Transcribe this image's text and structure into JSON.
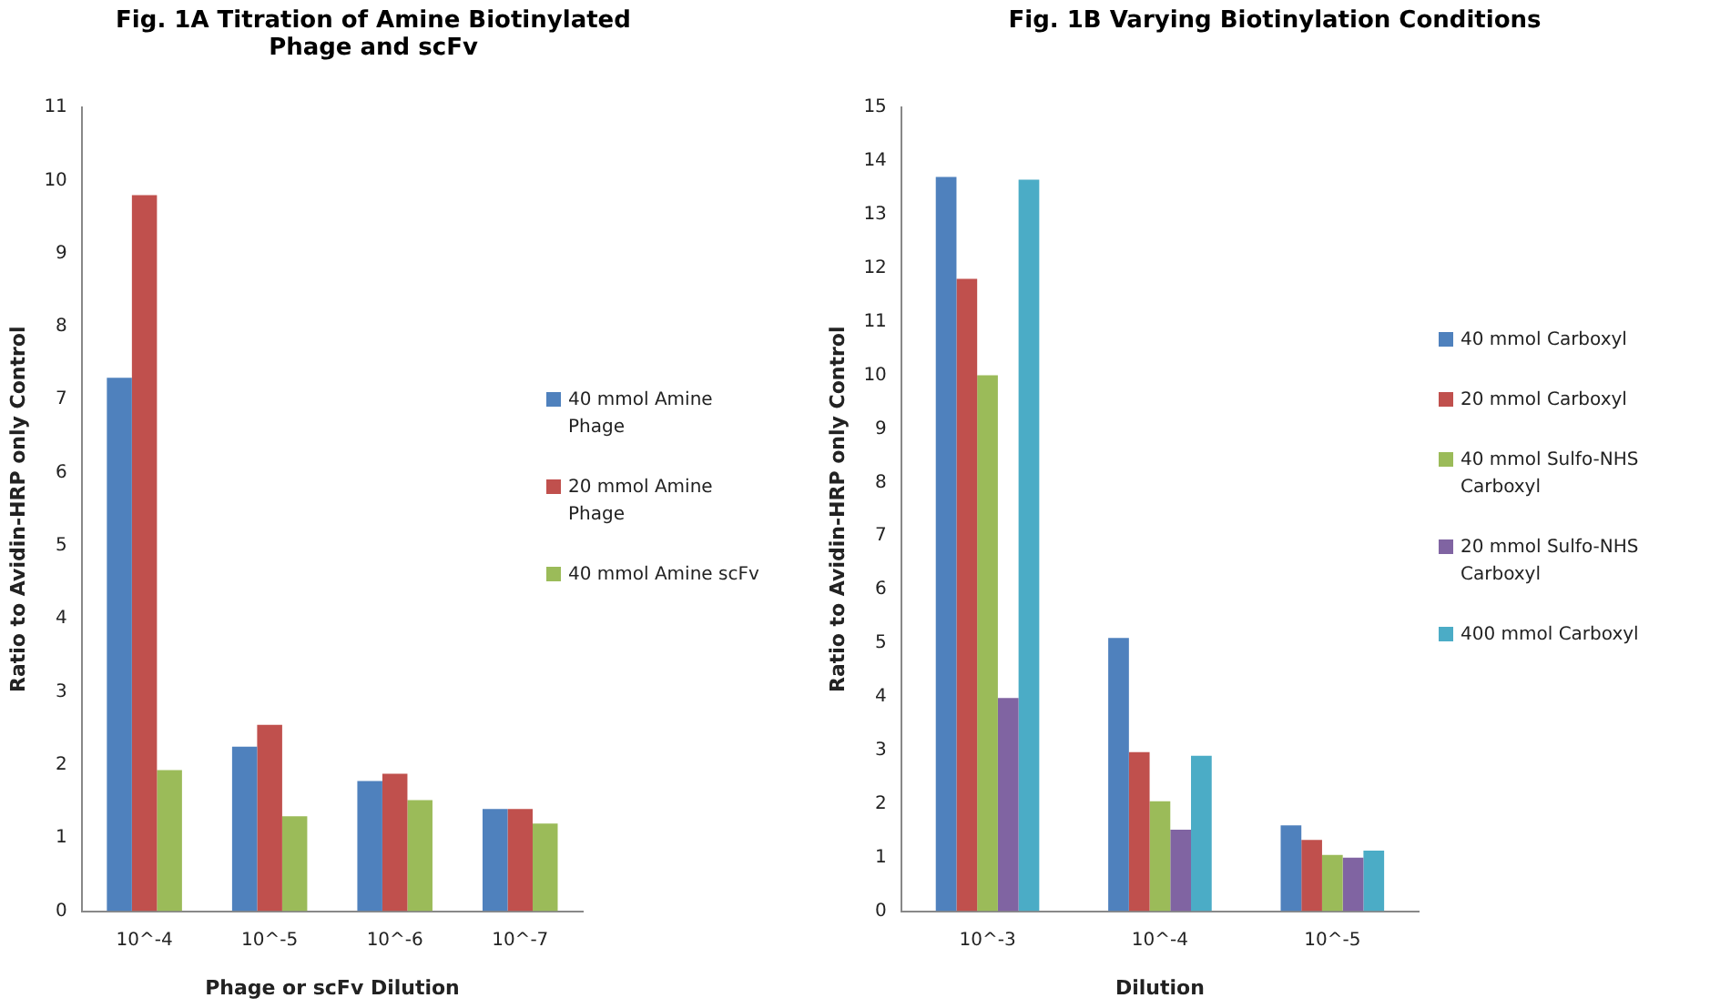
{
  "chart_data": [
    {
      "type": "bar",
      "title": "Fig. 1A Titration of Amine Biotinylated Phage and scFv",
      "xlabel": "Phage or scFv Dilution",
      "ylabel": "Ratio to Avidin-HRP only Control",
      "categories": [
        "10^-4",
        "10^-5",
        "10^-6",
        "10^-7"
      ],
      "series": [
        {
          "name": "40 mmol Amine Phage",
          "color": "#4f81bd",
          "values": [
            7.3,
            2.25,
            1.78,
            1.4
          ]
        },
        {
          "name": "20 mmol Amine Phage",
          "color": "#c0504d",
          "values": [
            9.8,
            2.55,
            1.88,
            1.4
          ]
        },
        {
          "name": "40 mmol Amine scFv",
          "color": "#9bbb59",
          "values": [
            1.93,
            1.3,
            1.52,
            1.2
          ]
        }
      ],
      "ylim": [
        0,
        11
      ],
      "yticks": [
        0,
        1,
        2,
        3,
        4,
        5,
        6,
        7,
        8,
        9,
        10,
        11
      ],
      "grid": false,
      "legend": "right"
    },
    {
      "type": "bar",
      "title": "Fig. 1B Varying Biotinylation Conditions",
      "xlabel": "Dilution",
      "ylabel": "Ratio to Avidin-HRP only Control",
      "categories": [
        "10^-3",
        "10^-4",
        "10^-5"
      ],
      "series": [
        {
          "name": "40 mmol Carboxyl",
          "color": "#4f81bd",
          "values": [
            13.7,
            5.1,
            1.6
          ]
        },
        {
          "name": "20 mmol Carboxyl",
          "color": "#c0504d",
          "values": [
            11.8,
            2.97,
            1.33
          ]
        },
        {
          "name": "40 mmol Sulfo-NHS Carboxyl",
          "color": "#9bbb59",
          "values": [
            10,
            2.05,
            1.05
          ]
        },
        {
          "name": "20 mmol Sulfo-NHS Carboxyl",
          "color": "#8064a2",
          "values": [
            3.98,
            1.52,
            1.0
          ]
        },
        {
          "name": "400 mmol Carboxyl",
          "color": "#4bacc6",
          "values": [
            13.65,
            2.9,
            1.13
          ]
        }
      ],
      "ylim": [
        0,
        15
      ],
      "yticks": [
        0,
        1,
        2,
        3,
        4,
        5,
        6,
        7,
        8,
        9,
        10,
        11,
        12,
        13,
        14,
        15
      ],
      "grid": false,
      "legend": "right"
    }
  ]
}
